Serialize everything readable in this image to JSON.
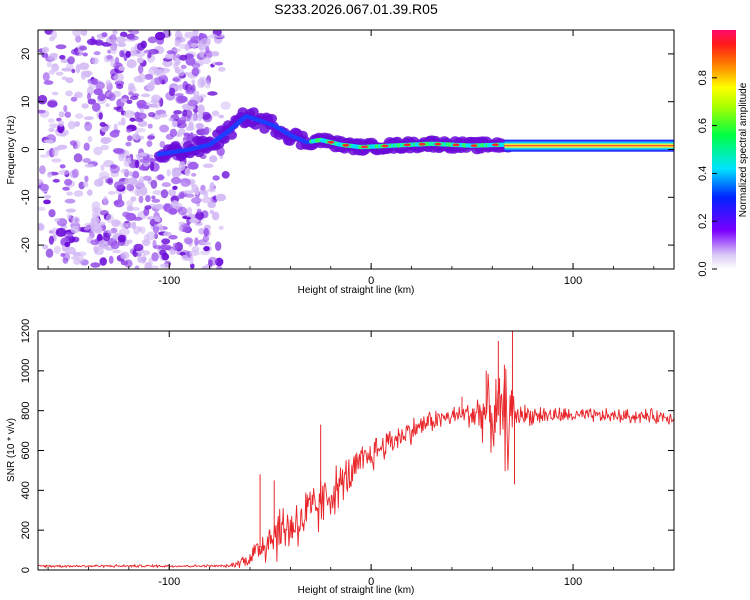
{
  "figure_title": "S233.2026.067.01.39.R05",
  "colors": {
    "snr_line": "#e8262a",
    "scatter_purple": "#8a2be2",
    "band_core": "#e8263a"
  },
  "chart_data": [
    {
      "type": "heatmap",
      "name": "spectrogram",
      "title": "S233.2026.067.01.39.R05",
      "xlabel": "Height of straight line (km)",
      "ylabel": "Frequency (Hz)",
      "xlim": [
        -165,
        150
      ],
      "ylim": [
        -25,
        25
      ],
      "xticks": [
        -100,
        0,
        100
      ],
      "yticks": [
        -20,
        -10,
        0,
        10,
        20
      ],
      "xtick_labels": [
        "-100",
        "0",
        "100"
      ],
      "ytick_labels": [
        "-20",
        "-10",
        "0",
        "10",
        "20"
      ],
      "noise_region_km": [
        -165,
        -70
      ],
      "signal_track": [
        {
          "x": -105,
          "y": -1
        },
        {
          "x": -90,
          "y": 0
        },
        {
          "x": -80,
          "y": 1
        },
        {
          "x": -70,
          "y": 4
        },
        {
          "x": -62,
          "y": 7
        },
        {
          "x": -55,
          "y": 6
        },
        {
          "x": -48,
          "y": 5
        },
        {
          "x": -40,
          "y": 3
        },
        {
          "x": -32,
          "y": 1.5
        },
        {
          "x": -25,
          "y": 2
        },
        {
          "x": -15,
          "y": 1
        },
        {
          "x": -5,
          "y": 0.5
        },
        {
          "x": 10,
          "y": 0.8
        },
        {
          "x": 30,
          "y": 1.2
        },
        {
          "x": 50,
          "y": 0.8
        },
        {
          "x": 65,
          "y": 1
        },
        {
          "x": 100,
          "y": 0.8
        },
        {
          "x": 150,
          "y": 0.8
        }
      ],
      "colorbar": {
        "label": "Normalized spectral amplitude",
        "range": [
          0,
          1
        ],
        "ticks": [
          0.0,
          0.2,
          0.4,
          0.6,
          0.8
        ],
        "tick_labels": [
          "0.0",
          "0.2",
          "0.4",
          "0.6",
          "0.8"
        ]
      }
    },
    {
      "type": "line",
      "name": "snr",
      "xlabel": "Height of straight line (km)",
      "ylabel": "SNR (10 * v/v)",
      "xlim": [
        -165,
        150
      ],
      "ylim": [
        0,
        1200
      ],
      "xticks": [
        -100,
        0,
        100
      ],
      "yticks": [
        0,
        200,
        400,
        600,
        800,
        1000,
        1200
      ],
      "xtick_labels": [
        "-100",
        "0",
        "100"
      ],
      "ytick_labels": [
        "0",
        "200",
        "400",
        "600",
        "800",
        "1000",
        "1200"
      ],
      "envelope": [
        {
          "x": -165,
          "mean": 20,
          "spread": 8
        },
        {
          "x": -70,
          "mean": 20,
          "spread": 8
        },
        {
          "x": -60,
          "mean": 60,
          "spread": 60
        },
        {
          "x": -50,
          "mean": 170,
          "spread": 180
        },
        {
          "x": -40,
          "mean": 220,
          "spread": 170
        },
        {
          "x": -30,
          "mean": 280,
          "spread": 200
        },
        {
          "x": -20,
          "mean": 380,
          "spread": 150
        },
        {
          "x": -10,
          "mean": 480,
          "spread": 130
        },
        {
          "x": 0,
          "mean": 580,
          "spread": 110
        },
        {
          "x": 10,
          "mean": 650,
          "spread": 90
        },
        {
          "x": 20,
          "mean": 700,
          "spread": 80
        },
        {
          "x": 30,
          "mean": 750,
          "spread": 70
        },
        {
          "x": 45,
          "mean": 780,
          "spread": 60
        },
        {
          "x": 55,
          "mean": 790,
          "spread": 160
        },
        {
          "x": 62,
          "mean": 780,
          "spread": 260
        },
        {
          "x": 68,
          "mean": 760,
          "spread": 320
        },
        {
          "x": 72,
          "mean": 780,
          "spread": 70
        },
        {
          "x": 100,
          "mean": 775,
          "spread": 45
        },
        {
          "x": 150,
          "mean": 770,
          "spread": 45
        }
      ],
      "peak_points": [
        {
          "x": -55,
          "y": 480
        },
        {
          "x": -48,
          "y": 450
        },
        {
          "x": -25,
          "y": 730
        },
        {
          "x": 45,
          "y": 870
        },
        {
          "x": 57,
          "y": 1000
        },
        {
          "x": 63,
          "y": 1150
        },
        {
          "x": 66,
          "y": 1030
        },
        {
          "x": 70,
          "y": 1200
        },
        {
          "x": 71,
          "y": 430
        }
      ]
    }
  ]
}
